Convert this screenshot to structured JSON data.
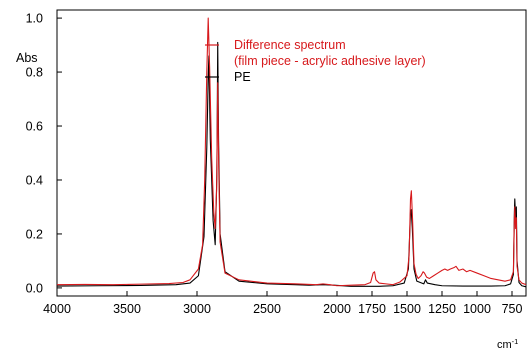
{
  "chart_data": {
    "type": "line",
    "title": "",
    "ylabel": "Abs",
    "xlabel": "cm",
    "xlabel_superscript": "-1",
    "xlim": [
      4000,
      650
    ],
    "ylim": [
      -0.03,
      1.03
    ],
    "x_reversed": true,
    "grid": false,
    "legend_position": "top-right",
    "xticks": [
      4000,
      3500,
      3000,
      2500,
      2000,
      1750,
      1500,
      1250,
      1000,
      750
    ],
    "yticks": [
      0.0,
      0.2,
      0.4,
      0.6,
      0.8,
      1.0
    ],
    "ytick_labels": [
      "0.0",
      "0.2",
      "0.4",
      "0.6",
      "0.8",
      "1.0"
    ],
    "series": [
      {
        "name": "PE",
        "color": "#000000",
        "points": [
          [
            4000,
            0.007
          ],
          [
            3700,
            0.008
          ],
          [
            3400,
            0.009
          ],
          [
            3150,
            0.012
          ],
          [
            3050,
            0.018
          ],
          [
            2990,
            0.045
          ],
          [
            2950,
            0.19
          ],
          [
            2930,
            0.52
          ],
          [
            2920,
            0.78
          ],
          [
            2915,
            0.86
          ],
          [
            2905,
            0.55
          ],
          [
            2885,
            0.25
          ],
          [
            2870,
            0.16
          ],
          [
            2858,
            0.42
          ],
          [
            2852,
            0.91
          ],
          [
            2846,
            0.55
          ],
          [
            2835,
            0.2
          ],
          [
            2800,
            0.06
          ],
          [
            2700,
            0.025
          ],
          [
            2500,
            0.015
          ],
          [
            2300,
            0.012
          ],
          [
            2200,
            0.01
          ],
          [
            2100,
            0.012
          ],
          [
            2020,
            0.01
          ],
          [
            1900,
            0.006
          ],
          [
            1800,
            0.006
          ],
          [
            1740,
            0.006
          ],
          [
            1700,
            0.006
          ],
          [
            1600,
            0.008
          ],
          [
            1520,
            0.018
          ],
          [
            1490,
            0.07
          ],
          [
            1475,
            0.28
          ],
          [
            1470,
            0.29
          ],
          [
            1462,
            0.22
          ],
          [
            1450,
            0.07
          ],
          [
            1430,
            0.025
          ],
          [
            1380,
            0.015
          ],
          [
            1368,
            0.03
          ],
          [
            1355,
            0.018
          ],
          [
            1300,
            0.012
          ],
          [
            1250,
            0.008
          ],
          [
            1100,
            0.007
          ],
          [
            900,
            0.007
          ],
          [
            800,
            0.008
          ],
          [
            760,
            0.015
          ],
          [
            740,
            0.05
          ],
          [
            733,
            0.28
          ],
          [
            730,
            0.33
          ],
          [
            724,
            0.25
          ],
          [
            719,
            0.3
          ],
          [
            714,
            0.1
          ],
          [
            700,
            0.02
          ],
          [
            680,
            0.008
          ],
          [
            650,
            0.004
          ]
        ]
      },
      {
        "name": "Difference spectrum\n(film piece - acrylic adhesive layer)",
        "color": "#d7191c",
        "points": [
          [
            4000,
            0.012
          ],
          [
            3800,
            0.013
          ],
          [
            3600,
            0.012
          ],
          [
            3400,
            0.014
          ],
          [
            3200,
            0.016
          ],
          [
            3100,
            0.02
          ],
          [
            3050,
            0.03
          ],
          [
            2990,
            0.07
          ],
          [
            2960,
            0.16
          ],
          [
            2945,
            0.4
          ],
          [
            2930,
            0.8
          ],
          [
            2920,
            1.0
          ],
          [
            2910,
            0.82
          ],
          [
            2895,
            0.48
          ],
          [
            2880,
            0.28
          ],
          [
            2870,
            0.22
          ],
          [
            2860,
            0.36
          ],
          [
            2852,
            0.76
          ],
          [
            2845,
            0.45
          ],
          [
            2835,
            0.17
          ],
          [
            2800,
            0.055
          ],
          [
            2700,
            0.03
          ],
          [
            2500,
            0.018
          ],
          [
            2300,
            0.015
          ],
          [
            2150,
            0.012
          ],
          [
            2100,
            0.015
          ],
          [
            2050,
            0.012
          ],
          [
            2000,
            0.008
          ],
          [
            1900,
            0.01
          ],
          [
            1800,
            0.012
          ],
          [
            1760,
            0.02
          ],
          [
            1742,
            0.055
          ],
          [
            1732,
            0.06
          ],
          [
            1722,
            0.03
          ],
          [
            1700,
            0.018
          ],
          [
            1650,
            0.015
          ],
          [
            1600,
            0.012
          ],
          [
            1550,
            0.022
          ],
          [
            1500,
            0.045
          ],
          [
            1485,
            0.12
          ],
          [
            1475,
            0.33
          ],
          [
            1469,
            0.36
          ],
          [
            1460,
            0.25
          ],
          [
            1450,
            0.09
          ],
          [
            1435,
            0.05
          ],
          [
            1420,
            0.035
          ],
          [
            1400,
            0.045
          ],
          [
            1385,
            0.06
          ],
          [
            1375,
            0.055
          ],
          [
            1360,
            0.04
          ],
          [
            1340,
            0.035
          ],
          [
            1310,
            0.045
          ],
          [
            1280,
            0.055
          ],
          [
            1250,
            0.065
          ],
          [
            1230,
            0.07
          ],
          [
            1210,
            0.065
          ],
          [
            1190,
            0.07
          ],
          [
            1165,
            0.075
          ],
          [
            1150,
            0.08
          ],
          [
            1130,
            0.065
          ],
          [
            1100,
            0.07
          ],
          [
            1075,
            0.06
          ],
          [
            1050,
            0.065
          ],
          [
            1000,
            0.055
          ],
          [
            950,
            0.045
          ],
          [
            900,
            0.035
          ],
          [
            850,
            0.03
          ],
          [
            800,
            0.025
          ],
          [
            760,
            0.03
          ],
          [
            740,
            0.06
          ],
          [
            733,
            0.26
          ],
          [
            730,
            0.3
          ],
          [
            724,
            0.22
          ],
          [
            719,
            0.26
          ],
          [
            714,
            0.08
          ],
          [
            700,
            0.03
          ],
          [
            680,
            0.018
          ],
          [
            650,
            0.012
          ]
        ]
      }
    ]
  }
}
